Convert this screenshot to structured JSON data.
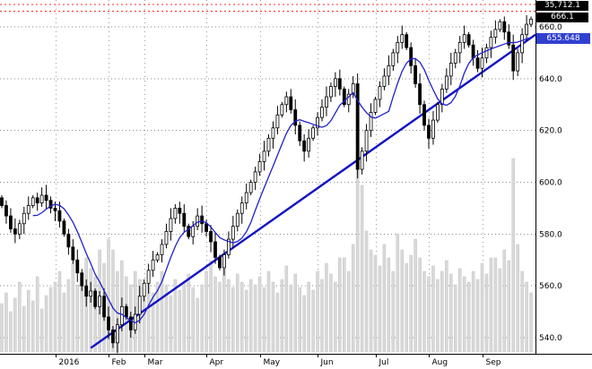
{
  "colors": {
    "background": "#ffffff",
    "candle_black": "#000000",
    "volume_gray": "#d9d9d9",
    "volume_stroke": "#c4c4c4",
    "ma_blue": "#2020cc",
    "trend_blue": "#1212c4",
    "alert_red": "#ff2a2a",
    "grid_gray": "#8a8a8a",
    "box_blue": "#3140d0",
    "box_black": "#000000"
  },
  "chart_data": {
    "type": "candlestick",
    "title": "",
    "legend": "none",
    "grid": true,
    "x_axis": {
      "labels": [
        "2016",
        "Feb",
        "Mar",
        "Apr",
        "May",
        "Jun",
        "Jul",
        "Aug",
        "Sep"
      ],
      "tick_indices": [
        12,
        24,
        32,
        46,
        58,
        71,
        84,
        96,
        108
      ]
    },
    "y_axis": {
      "tick_labels": [
        "660.0",
        "640.0",
        "620.0",
        "600.0",
        "580.0",
        "560.0",
        "540.0"
      ],
      "range": [
        536,
        670
      ]
    },
    "right_axis": {
      "boxes": [
        {
          "label": "35,712.1",
          "style": "black"
        },
        {
          "label": "666.1",
          "style": "black"
        },
        {
          "label": "655.648",
          "style": "blue"
        }
      ]
    },
    "red_dashed_levels": [
      668.6,
      666.1
    ],
    "trendline": {
      "from_index": 20,
      "from_price": 536,
      "to_index": 120,
      "to_price": 657
    },
    "moving_average": {
      "kind": "SMA",
      "window": 8,
      "last_value": 655.648
    },
    "closes": [
      591,
      587,
      582,
      580,
      584,
      588,
      591,
      594,
      592,
      595,
      593,
      590,
      589,
      585,
      580,
      575,
      570,
      565,
      560,
      556,
      558,
      552,
      556,
      548,
      543,
      538,
      545,
      552,
      548,
      543,
      549,
      556,
      561,
      566,
      570,
      572,
      576,
      581,
      586,
      590,
      588,
      583,
      579,
      583,
      587,
      584,
      581,
      577,
      571,
      567,
      572,
      578,
      583,
      588,
      592,
      596,
      600,
      604,
      608,
      612,
      617,
      621,
      626,
      630,
      633,
      628,
      622,
      616,
      612,
      617,
      621,
      625,
      629,
      633,
      637,
      640,
      636,
      630,
      634,
      638,
      605,
      612,
      620,
      627,
      632,
      637,
      641,
      645,
      650,
      654,
      657,
      652,
      645,
      638,
      630,
      622,
      617,
      624,
      630,
      636,
      641,
      646,
      650,
      654,
      657,
      653,
      648,
      644,
      648,
      652,
      656,
      659,
      662,
      658,
      653,
      643,
      650,
      657,
      661,
      663
    ],
    "volumes": [
      18,
      22,
      15,
      20,
      26,
      17,
      23,
      19,
      28,
      16,
      21,
      24,
      26,
      30,
      22,
      27,
      33,
      25,
      29,
      35,
      31,
      28,
      38,
      33,
      42,
      38,
      30,
      34,
      28,
      25,
      30,
      27,
      24,
      28,
      22,
      26,
      30,
      25,
      21,
      27,
      23,
      26,
      29,
      24,
      20,
      25,
      30,
      34,
      28,
      26,
      31,
      27,
      24,
      29,
      26,
      23,
      27,
      25,
      28,
      24,
      30,
      26,
      22,
      27,
      32,
      25,
      29,
      24,
      21,
      26,
      23,
      30,
      27,
      33,
      29,
      26,
      35,
      35,
      30,
      40,
      100,
      62,
      45,
      38,
      36,
      32,
      40,
      35,
      30,
      44,
      38,
      33,
      36,
      42,
      35,
      30,
      28,
      32,
      27,
      30,
      34,
      29,
      25,
      31,
      28,
      26,
      30,
      27,
      33,
      29,
      35,
      35,
      31,
      38,
      34,
      72,
      40,
      30,
      26,
      22
    ]
  }
}
